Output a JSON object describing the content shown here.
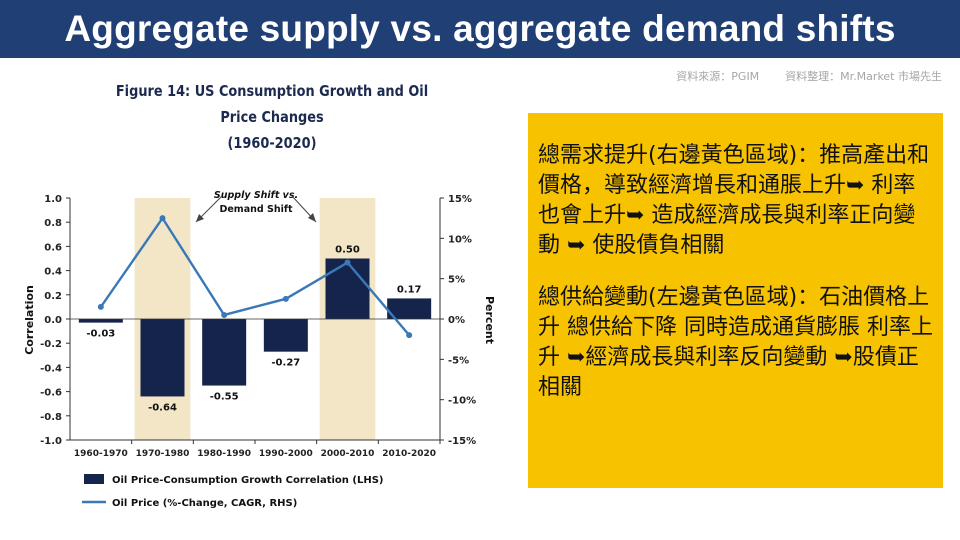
{
  "header": {
    "title": "Aggregate supply vs. aggregate demand shifts"
  },
  "source": {
    "data_source": "資料來源：PGIM",
    "compiled_by": "資料整理：Mr.Market 市場先生"
  },
  "figure": {
    "title_line1": "Figure 14: US Consumption Growth and Oil Price Changes",
    "title_line2": "(1960-2020)"
  },
  "callout": {
    "paragraph1": "總需求提升(右邊黃色區域)：推高產出和價格，導致經濟增長和通脹上升➥ 利率也會上升➥ 造成經濟成長與利率正向變動 ➥ 使股債負相關",
    "paragraph2": "總供給變動(左邊黃色區域)：石油價格上升 總供給下降 同時造成通貨膨脹 利率上升 ➥經濟成長與利率反向變動 ➥股債正相關"
  },
  "chart_data": {
    "type": "bar",
    "categories": [
      "1960-1970",
      "1970-1980",
      "1980-1990",
      "1990-2000",
      "2000-2010",
      "2010-2020"
    ],
    "series": [
      {
        "name": "Oil Price-Consumption Growth Correlation (LHS)",
        "type": "bar",
        "axis": "left",
        "values": [
          -0.03,
          -0.64,
          -0.55,
          -0.27,
          0.5,
          0.17
        ],
        "labels": [
          "-0.03",
          "-0.64",
          "-0.55",
          "-0.27",
          "0.50",
          "0.17"
        ],
        "color": "#15244a"
      },
      {
        "name": "Oil Price (%-Change, CAGR, RHS)",
        "type": "line",
        "axis": "right",
        "values": [
          1.5,
          12.5,
          0.5,
          2.5,
          7,
          -2
        ],
        "color": "#3a78b8"
      }
    ],
    "y_left": {
      "label": "Correlation",
      "min": -1.0,
      "max": 1.0,
      "ticks": [
        1.0,
        0.8,
        0.6,
        0.4,
        0.2,
        0.0,
        -0.2,
        -0.4,
        -0.6,
        -0.8,
        -1.0
      ],
      "tick_labels": [
        "1.0",
        "0.8",
        "0.6",
        "0.4",
        "0.2",
        "0.0",
        "-0.2",
        "-0.4",
        "-0.6",
        "-0.8",
        "-1.0"
      ]
    },
    "y_right": {
      "label": "Percent",
      "min": -15,
      "max": 15,
      "ticks": [
        15,
        10,
        5,
        0,
        -5,
        -10,
        -15
      ],
      "tick_labels": [
        "15%",
        "10%",
        "5%",
        "0%",
        "-5%",
        "-10%",
        "-15%"
      ]
    },
    "shaded_categories": [
      "1970-1980",
      "2000-2010"
    ],
    "shade_color": "#f2e6c6",
    "annotation": {
      "line1": "Supply Shift vs.",
      "line2": "Demand Shift"
    },
    "legend": {
      "position": "bottom-left"
    },
    "grid": false
  }
}
